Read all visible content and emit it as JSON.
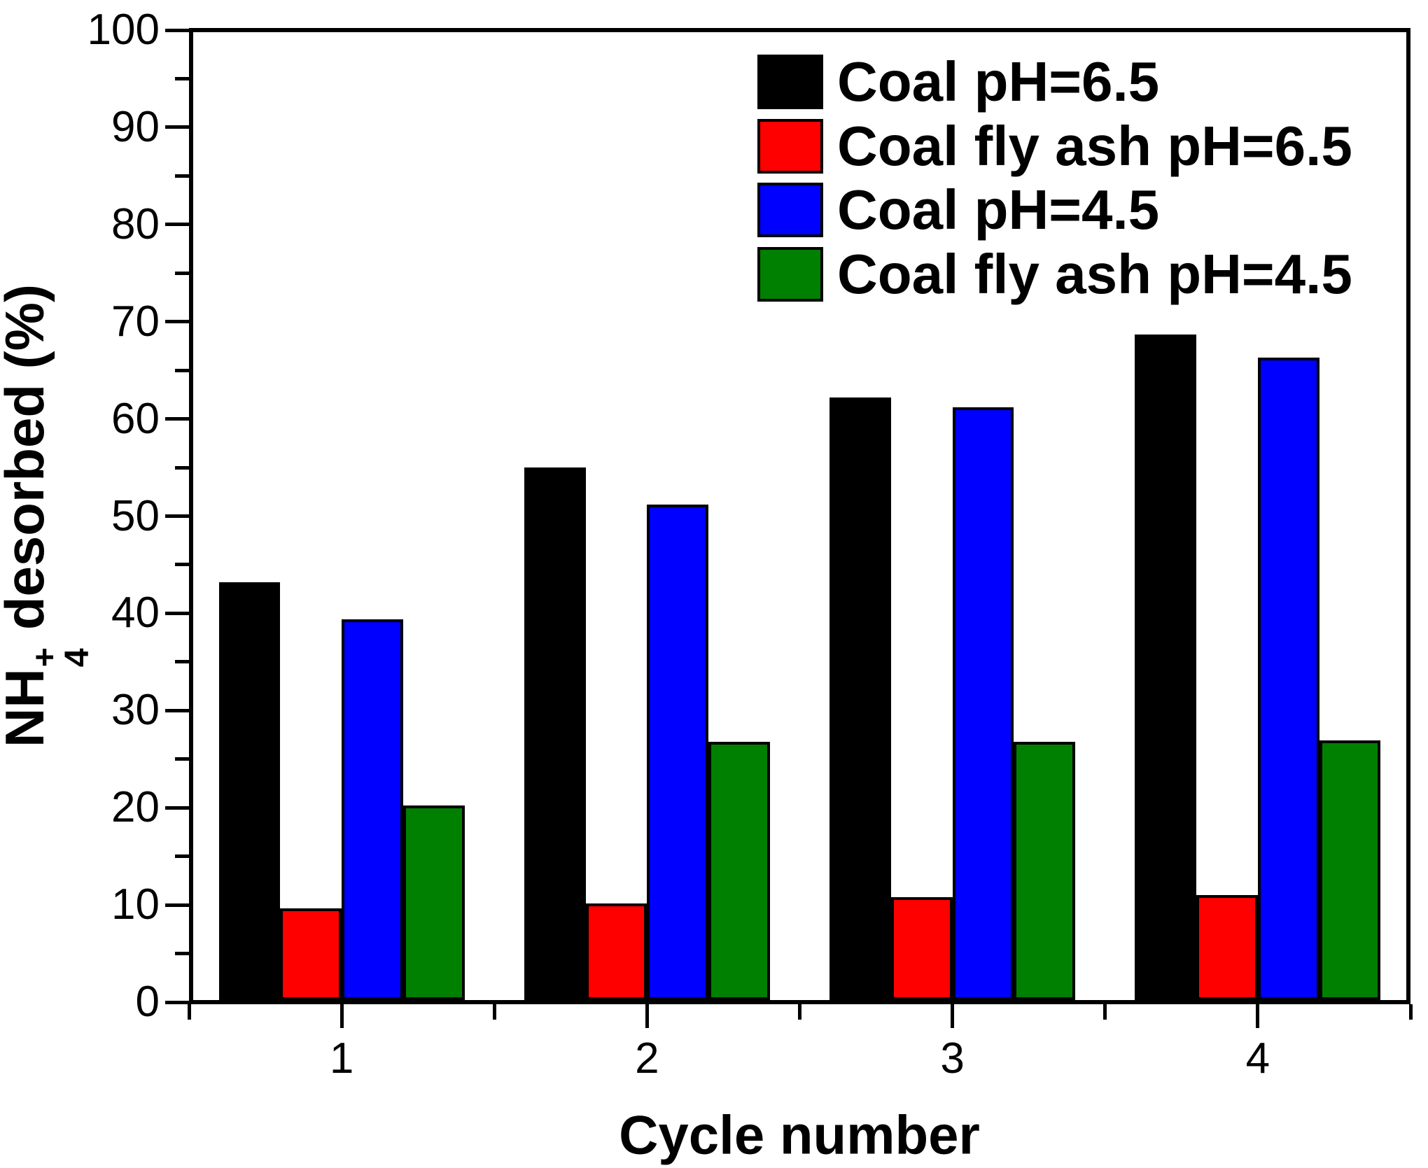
{
  "figure": {
    "background": "#ffffff",
    "axis_color": "#000000"
  },
  "chart_data": {
    "type": "bar",
    "title": "",
    "xlabel": "Cycle number",
    "ylabel": "NH4+ desorbed (%)",
    "ylabel_rich": {
      "prefix": "NH",
      "sub": "4",
      "sup": "+",
      "suffix": "desorbed (%)"
    },
    "categories": [
      "1",
      "2",
      "3",
      "4"
    ],
    "series": [
      {
        "name": "Coal pH=6.5",
        "color": "#000000",
        "values": [
          43.0,
          54.8,
          62.0,
          68.5
        ]
      },
      {
        "name": "Coal fly ash pH=6.5",
        "color": "#ff0000",
        "values": [
          9.4,
          9.9,
          10.6,
          10.8
        ]
      },
      {
        "name": "Coal pH=4.5",
        "color": "#0000ff",
        "values": [
          39.2,
          51.0,
          61.0,
          66.1
        ]
      },
      {
        "name": "Coal fly ash pH=4.5",
        "color": "#008000",
        "values": [
          20.0,
          26.6,
          26.6,
          26.7
        ]
      }
    ],
    "ylim": [
      0,
      100
    ],
    "y_major_tick_step": 10,
    "y_minor_tick_step": 5,
    "y_tick_labels": [
      "0",
      "10",
      "20",
      "30",
      "40",
      "50",
      "60",
      "70",
      "80",
      "90",
      "100"
    ],
    "legend_position": "top-right",
    "grid": false
  }
}
